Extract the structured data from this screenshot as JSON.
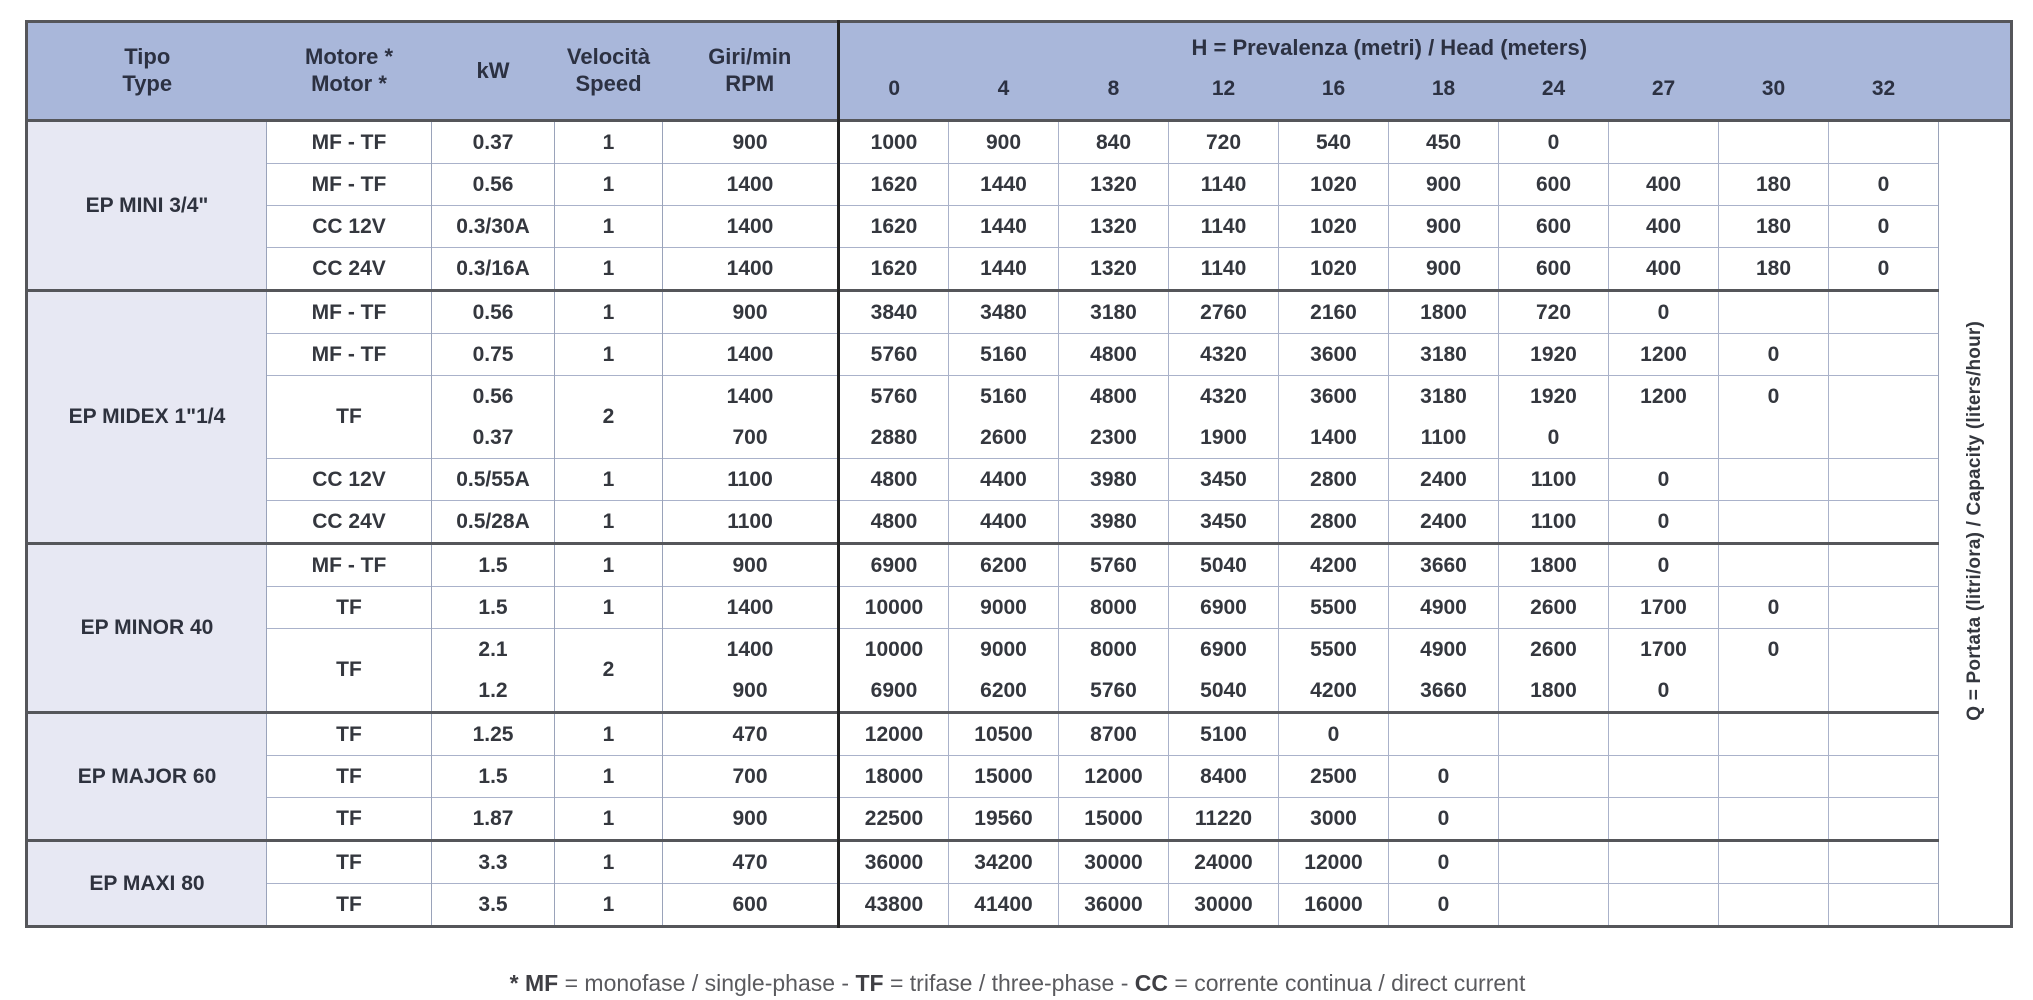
{
  "header": {
    "tipo_it": "Tipo",
    "tipo_en": "Type",
    "motore_it": "Motore *",
    "motore_en": "Motor *",
    "kw": "kW",
    "velocita_it": "Velocità",
    "velocita_en": "Speed",
    "giri_it": "Giri/min",
    "giri_en": "RPM",
    "h_prefix": "H",
    "h_rest": " = Prevalenza (metri) / Head (meters)",
    "head_values": [
      "0",
      "4",
      "8",
      "12",
      "16",
      "18",
      "24",
      "27",
      "30",
      "32"
    ],
    "q_prefix": "Q",
    "q_rest": " = Portata (litri/ora) / Capacity (liters/hour)"
  },
  "groups": [
    {
      "type": "EP MINI 3/4\"",
      "rows": [
        {
          "motor": "MF - TF",
          "kw": "0.37",
          "speed": "1",
          "rpm": "900",
          "values": [
            "1000",
            "900",
            "840",
            "720",
            "540",
            "450",
            "0",
            "",
            "",
            ""
          ]
        },
        {
          "motor": "MF - TF",
          "kw": "0.56",
          "speed": "1",
          "rpm": "1400",
          "values": [
            "1620",
            "1440",
            "1320",
            "1140",
            "1020",
            "900",
            "600",
            "400",
            "180",
            "0"
          ]
        },
        {
          "motor": "CC 12V",
          "kw": "0.3/30A",
          "speed": "1",
          "rpm": "1400",
          "values": [
            "1620",
            "1440",
            "1320",
            "1140",
            "1020",
            "900",
            "600",
            "400",
            "180",
            "0"
          ]
        },
        {
          "motor": "CC 24V",
          "kw": "0.3/16A",
          "speed": "1",
          "rpm": "1400",
          "values": [
            "1620",
            "1440",
            "1320",
            "1140",
            "1020",
            "900",
            "600",
            "400",
            "180",
            "0"
          ]
        }
      ]
    },
    {
      "type": "EP MIDEX 1\"1/4",
      "rows": [
        {
          "motor": "MF - TF",
          "kw": "0.56",
          "speed": "1",
          "rpm": "900",
          "values": [
            "3840",
            "3480",
            "3180",
            "2760",
            "2160",
            "1800",
            "720",
            "0",
            "",
            ""
          ]
        },
        {
          "motor": "MF - TF",
          "kw": "0.75",
          "speed": "1",
          "rpm": "1400",
          "values": [
            "5760",
            "5160",
            "4800",
            "4320",
            "3600",
            "3180",
            "1920",
            "1200",
            "0",
            ""
          ]
        },
        {
          "motor": "TF",
          "kw": "0.56",
          "speed": "2",
          "rpm": "1400",
          "span": 2,
          "values": [
            "5760",
            "5160",
            "4800",
            "4320",
            "3600",
            "3180",
            "1920",
            "1200",
            "0",
            ""
          ]
        },
        {
          "cont": true,
          "kw": "0.37",
          "rpm": "700",
          "values": [
            "2880",
            "2600",
            "2300",
            "1900",
            "1400",
            "1100",
            "0",
            "",
            "",
            ""
          ]
        },
        {
          "motor": "CC 12V",
          "kw": "0.5/55A",
          "speed": "1",
          "rpm": "1100",
          "values": [
            "4800",
            "4400",
            "3980",
            "3450",
            "2800",
            "2400",
            "1100",
            "0",
            "",
            ""
          ]
        },
        {
          "motor": "CC 24V",
          "kw": "0.5/28A",
          "speed": "1",
          "rpm": "1100",
          "values": [
            "4800",
            "4400",
            "3980",
            "3450",
            "2800",
            "2400",
            "1100",
            "0",
            "",
            ""
          ]
        }
      ]
    },
    {
      "type": "EP MINOR 40",
      "rows": [
        {
          "motor": "MF - TF",
          "kw": "1.5",
          "speed": "1",
          "rpm": "900",
          "values": [
            "6900",
            "6200",
            "5760",
            "5040",
            "4200",
            "3660",
            "1800",
            "0",
            "",
            ""
          ]
        },
        {
          "motor": "TF",
          "kw": "1.5",
          "speed": "1",
          "rpm": "1400",
          "values": [
            "10000",
            "9000",
            "8000",
            "6900",
            "5500",
            "4900",
            "2600",
            "1700",
            "0",
            ""
          ]
        },
        {
          "motor": "TF",
          "kw": "2.1",
          "speed": "2",
          "rpm": "1400",
          "span": 2,
          "values": [
            "10000",
            "9000",
            "8000",
            "6900",
            "5500",
            "4900",
            "2600",
            "1700",
            "0",
            ""
          ]
        },
        {
          "cont": true,
          "kw": "1.2",
          "rpm": "900",
          "values": [
            "6900",
            "6200",
            "5760",
            "5040",
            "4200",
            "3660",
            "1800",
            "0",
            "",
            ""
          ]
        }
      ]
    },
    {
      "type": "EP MAJOR 60",
      "rows": [
        {
          "motor": "TF",
          "kw": "1.25",
          "speed": "1",
          "rpm": "470",
          "values": [
            "12000",
            "10500",
            "8700",
            "5100",
            "0",
            "",
            "",
            "",
            "",
            ""
          ]
        },
        {
          "motor": "TF",
          "kw": "1.5",
          "speed": "1",
          "rpm": "700",
          "values": [
            "18000",
            "15000",
            "12000",
            "8400",
            "2500",
            "0",
            "",
            "",
            "",
            ""
          ]
        },
        {
          "motor": "TF",
          "kw": "1.87",
          "speed": "1",
          "rpm": "900",
          "values": [
            "22500",
            "19560",
            "15000",
            "11220",
            "3000",
            "0",
            "",
            "",
            "",
            ""
          ]
        }
      ]
    },
    {
      "type": "EP MAXI 80",
      "rows": [
        {
          "motor": "TF",
          "kw": "3.3",
          "speed": "1",
          "rpm": "470",
          "values": [
            "36000",
            "34200",
            "30000",
            "24000",
            "12000",
            "0",
            "",
            "",
            "",
            ""
          ]
        },
        {
          "motor": "TF",
          "kw": "3.5",
          "speed": "1",
          "rpm": "600",
          "values": [
            "43800",
            "41400",
            "36000",
            "30000",
            "16000",
            "0",
            "",
            "",
            "",
            ""
          ]
        }
      ]
    }
  ],
  "footnote": {
    "parts": [
      {
        "text": "* MF",
        "bold": true
      },
      {
        "text": " = monofase / single-phase - ",
        "bold": false
      },
      {
        "text": "TF",
        "bold": true
      },
      {
        "text": " = trifase / three-phase - ",
        "bold": false
      },
      {
        "text": "CC",
        "bold": true
      },
      {
        "text": " = corrente continua / direct current",
        "bold": false
      }
    ]
  },
  "colors": {
    "header_bg": "#a9b7da",
    "type_col_bg": "#e7e8f3",
    "outer_border": "#55565a",
    "divider": "#232323",
    "grid_line": "#aab2ca",
    "text": "#34373e"
  }
}
